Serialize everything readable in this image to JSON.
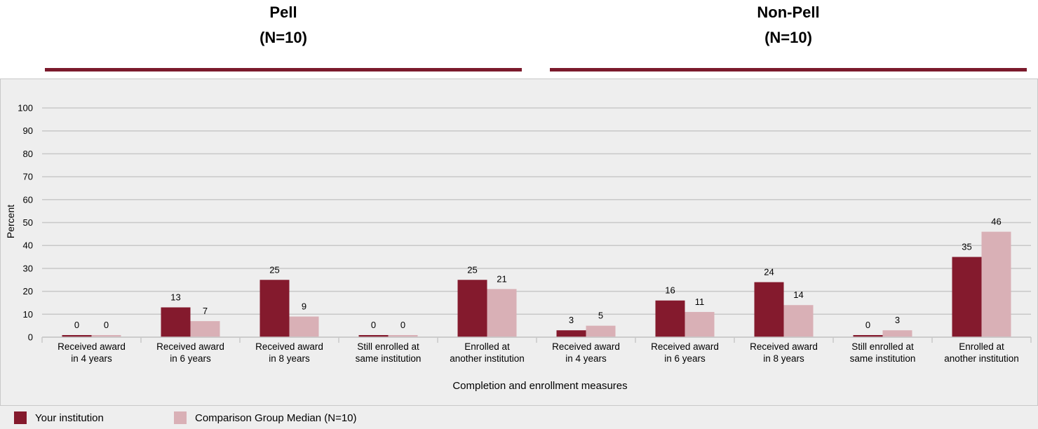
{
  "groups": [
    {
      "title": "Pell",
      "n": "(N=10)"
    },
    {
      "title": "Non-Pell",
      "n": "(N=10)"
    }
  ],
  "colors": {
    "rule": "#7b1a2c",
    "your_institution": "#841a2d",
    "comparison": "#d9b0b6",
    "grid": "#c8c8c8",
    "panel_bg": "#eeeeee"
  },
  "legend": [
    {
      "label": "Your institution",
      "color_key": "your_institution"
    },
    {
      "label": "Comparison Group Median (N=10)",
      "color_key": "comparison"
    }
  ],
  "chart_data": {
    "type": "bar",
    "ylabel": "Percent",
    "xlabel": "Completion and enrollment measures",
    "ylim": [
      0,
      100
    ],
    "yticks": [
      0,
      10,
      20,
      30,
      40,
      50,
      60,
      70,
      80,
      90,
      100
    ],
    "grid": true,
    "legend_position": "bottom",
    "categories": [
      [
        "Received award",
        "in 4 years"
      ],
      [
        "Received award",
        "in 6 years"
      ],
      [
        "Received award",
        "in 8 years"
      ],
      [
        "Still enrolled at",
        "same institution"
      ],
      [
        "Enrolled at",
        "another institution"
      ],
      [
        "Received award",
        "in 4 years"
      ],
      [
        "Received award",
        "in 6 years"
      ],
      [
        "Received award",
        "in 8 years"
      ],
      [
        "Still enrolled at",
        "same institution"
      ],
      [
        "Enrolled at",
        "another institution"
      ]
    ],
    "series": [
      {
        "name": "Your institution",
        "values": [
          0,
          13,
          25,
          0,
          25,
          3,
          16,
          24,
          0,
          35
        ]
      },
      {
        "name": "Comparison Group Median (N=10)",
        "values": [
          0,
          7,
          9,
          0,
          21,
          5,
          11,
          14,
          3,
          46
        ]
      }
    ]
  }
}
